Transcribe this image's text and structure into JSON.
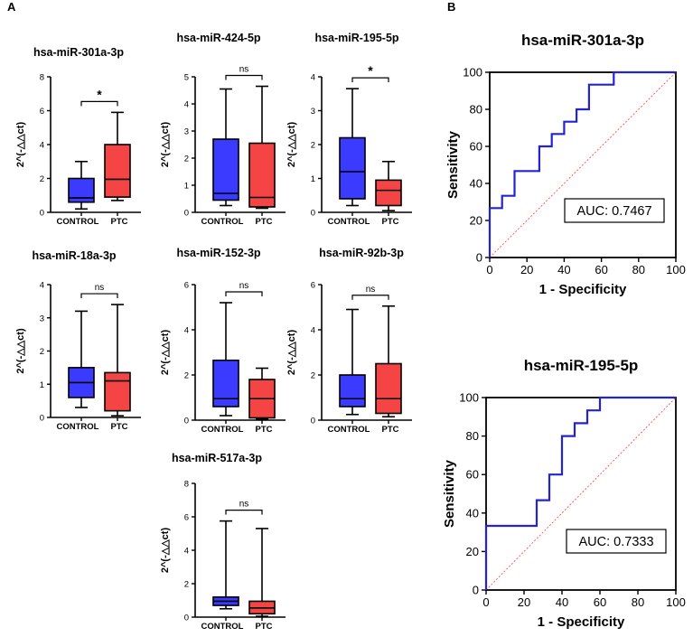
{
  "panels": {
    "a": "A",
    "b": "B"
  },
  "colors": {
    "control": "#3b3bff",
    "ptc": "#f44444",
    "roc_line": "#2323d6",
    "diag": "#ff4d4d",
    "axis": "#000000"
  },
  "chart_data": [
    {
      "type": "box",
      "title": "hsa-miR-301a-3p",
      "ylabel": "2^(-△△ct)",
      "ylim": [
        0,
        8
      ],
      "yticks": [
        "0",
        "2",
        "4",
        "6",
        "8"
      ],
      "categories": [
        "CONTROL",
        "PTC"
      ],
      "boxes": [
        {
          "name": "CONTROL",
          "min": 0.2,
          "q1": 0.6,
          "median": 0.85,
          "q3": 2.0,
          "max": 3.0
        },
        {
          "name": "PTC",
          "min": 0.7,
          "q1": 0.9,
          "median": 1.95,
          "q3": 4.0,
          "max": 5.9
        }
      ],
      "significance": "*"
    },
    {
      "type": "box",
      "title": "hsa-miR-424-5p",
      "ylabel": "2^(-△△ct)",
      "ylim": [
        0,
        5
      ],
      "yticks": [
        "0",
        "1",
        "2",
        "3",
        "4",
        "5"
      ],
      "categories": [
        "CONTROL",
        "PTC"
      ],
      "boxes": [
        {
          "name": "CONTROL",
          "min": 0.25,
          "q1": 0.45,
          "median": 0.7,
          "q3": 2.7,
          "max": 4.55
        },
        {
          "name": "PTC",
          "min": 0.15,
          "q1": 0.2,
          "median": 0.55,
          "q3": 2.55,
          "max": 4.65
        }
      ],
      "significance": "ns"
    },
    {
      "type": "box",
      "title": "hsa-miR-195-5p",
      "ylabel": "2^(-△△ct)",
      "ylim": [
        0,
        4
      ],
      "yticks": [
        "0",
        "1",
        "2",
        "3",
        "4"
      ],
      "categories": [
        "CONTROL",
        "PTC"
      ],
      "boxes": [
        {
          "name": "CONTROL",
          "min": 0.2,
          "q1": 0.4,
          "median": 1.2,
          "q3": 2.2,
          "max": 3.65
        },
        {
          "name": "PTC",
          "min": 0.05,
          "q1": 0.2,
          "median": 0.65,
          "q3": 0.95,
          "max": 1.5
        }
      ],
      "significance": "*"
    },
    {
      "type": "box",
      "title": "hsa-miR-18a-3p",
      "ylabel": "2^(-△△ct)",
      "ylim": [
        0,
        4
      ],
      "yticks": [
        "0",
        "1",
        "2",
        "3",
        "4"
      ],
      "categories": [
        "CONTROL",
        "PTC"
      ],
      "boxes": [
        {
          "name": "CONTROL",
          "min": 0.3,
          "q1": 0.6,
          "median": 1.05,
          "q3": 1.5,
          "max": 3.2
        },
        {
          "name": "PTC",
          "min": 0.05,
          "q1": 0.2,
          "median": 1.1,
          "q3": 1.35,
          "max": 3.4
        }
      ],
      "significance": "ns"
    },
    {
      "type": "box",
      "title": "hsa-miR-152-3p",
      "ylabel": "2^(-△△ct)",
      "ylim": [
        0,
        6
      ],
      "yticks": [
        "0",
        "2",
        "4",
        "6"
      ],
      "categories": [
        "CONTROL",
        "PTC"
      ],
      "boxes": [
        {
          "name": "CONTROL",
          "min": 0.2,
          "q1": 0.6,
          "median": 0.95,
          "q3": 2.65,
          "max": 5.2
        },
        {
          "name": "PTC",
          "min": 0.05,
          "q1": 0.1,
          "median": 0.95,
          "q3": 1.8,
          "max": 2.3
        }
      ],
      "significance": "ns"
    },
    {
      "type": "box",
      "title": "hsa-miR-92b-3p",
      "ylabel": "2^(-△△ct)",
      "ylim": [
        0,
        6
      ],
      "yticks": [
        "0",
        "2",
        "4",
        "6"
      ],
      "categories": [
        "CONTROL",
        "PTC"
      ],
      "boxes": [
        {
          "name": "CONTROL",
          "min": 0.25,
          "q1": 0.6,
          "median": 0.95,
          "q3": 2.0,
          "max": 4.9
        },
        {
          "name": "PTC",
          "min": 0.15,
          "q1": 0.3,
          "median": 0.95,
          "q3": 2.5,
          "max": 5.05
        }
      ],
      "significance": "ns"
    },
    {
      "type": "box",
      "title": "hsa-miR-517a-3p",
      "ylabel": "2^(-△△ct)",
      "ylim": [
        0,
        8
      ],
      "yticks": [
        "0",
        "2",
        "4",
        "6",
        "8"
      ],
      "categories": [
        "CONTROL",
        "PTC"
      ],
      "boxes": [
        {
          "name": "CONTROL",
          "min": 0.5,
          "q1": 0.7,
          "median": 0.95,
          "q3": 1.2,
          "max": 5.75
        },
        {
          "name": "PTC",
          "min": 0.05,
          "q1": 0.2,
          "median": 0.55,
          "q3": 0.95,
          "max": 5.3
        }
      ],
      "significance": "ns"
    },
    {
      "type": "line",
      "subtype": "roc",
      "title": "hsa-miR-301a-3p",
      "xlabel": "1 - Specificity",
      "ylabel": "Sensitivity",
      "xlim": [
        0,
        100
      ],
      "ylim": [
        0,
        100
      ],
      "xticks": [
        "0",
        "20",
        "40",
        "60",
        "80",
        "100"
      ],
      "yticks": [
        "0",
        "20",
        "40",
        "60",
        "80",
        "100"
      ],
      "x": [
        0,
        0,
        6.67,
        6.67,
        13.33,
        13.33,
        26.67,
        26.67,
        33.33,
        33.33,
        40,
        40,
        46.67,
        46.67,
        53.33,
        53.33,
        66.67,
        66.67,
        100
      ],
      "y": [
        0,
        26.67,
        26.67,
        33.33,
        33.33,
        46.67,
        46.67,
        60,
        60,
        66.67,
        66.67,
        73.33,
        73.33,
        80,
        80,
        93.33,
        93.33,
        100,
        100
      ],
      "auc_label": "AUC: 0.7467"
    },
    {
      "type": "line",
      "subtype": "roc",
      "title": "hsa-miR-195-5p",
      "xlabel": "1 - Specificity",
      "ylabel": "Sensitivity",
      "xlim": [
        0,
        100
      ],
      "ylim": [
        0,
        100
      ],
      "xticks": [
        "0",
        "20",
        "40",
        "60",
        "80",
        "100"
      ],
      "yticks": [
        "0",
        "20",
        "40",
        "60",
        "80",
        "100"
      ],
      "x": [
        0,
        0,
        26.67,
        26.67,
        33.33,
        33.33,
        40,
        40,
        46.67,
        46.67,
        53.33,
        53.33,
        60,
        60,
        100
      ],
      "y": [
        0,
        33.33,
        33.33,
        46.67,
        46.67,
        60,
        60,
        80,
        80,
        86.67,
        86.67,
        93.33,
        93.33,
        100,
        100
      ],
      "auc_label": "AUC: 0.7333"
    }
  ]
}
